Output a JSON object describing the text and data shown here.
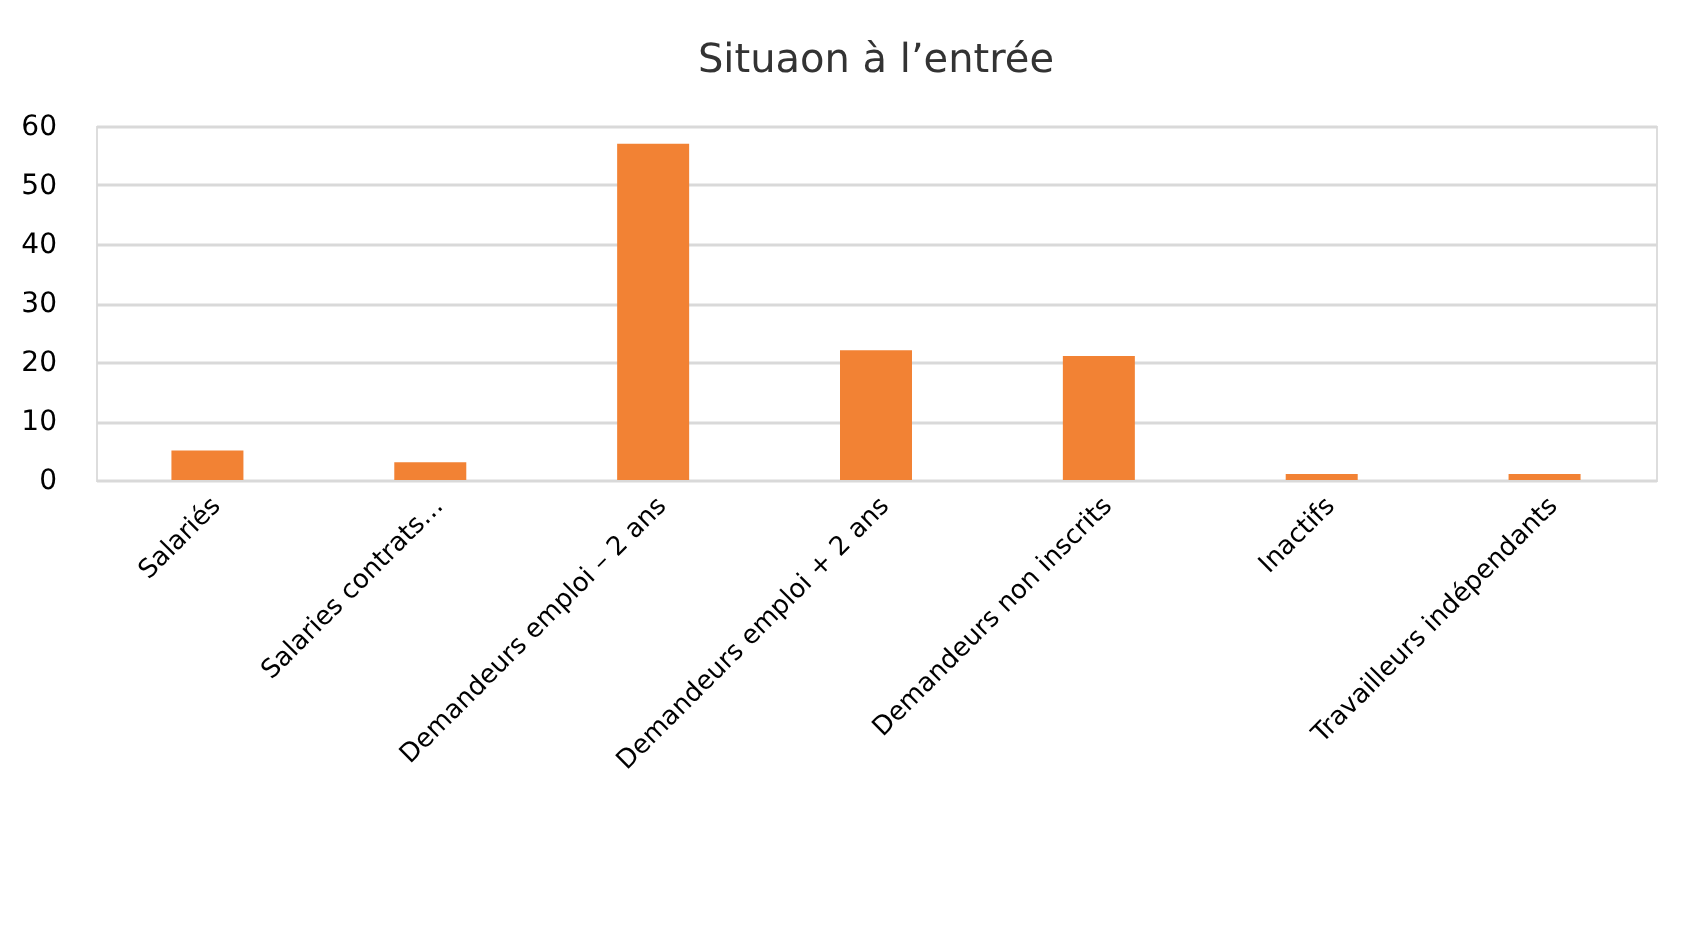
{
  "chart_data": {
    "type": "bar",
    "title": "Situaon à l’entrée",
    "categories": [
      "Salariés",
      "Salaries contrats…",
      "Demandeurs emploi – 2 ans",
      "Demandeurs emploi + 2 ans",
      "Demandeurs non inscrits",
      "Inactifs",
      "Travailleurs indépendants"
    ],
    "values": [
      5,
      3,
      57,
      22,
      21,
      1,
      1
    ],
    "color": "#f28234",
    "ylim": [
      0,
      60
    ],
    "yticks": [
      0,
      10,
      20,
      30,
      40,
      50,
      60
    ],
    "grid": "y"
  }
}
